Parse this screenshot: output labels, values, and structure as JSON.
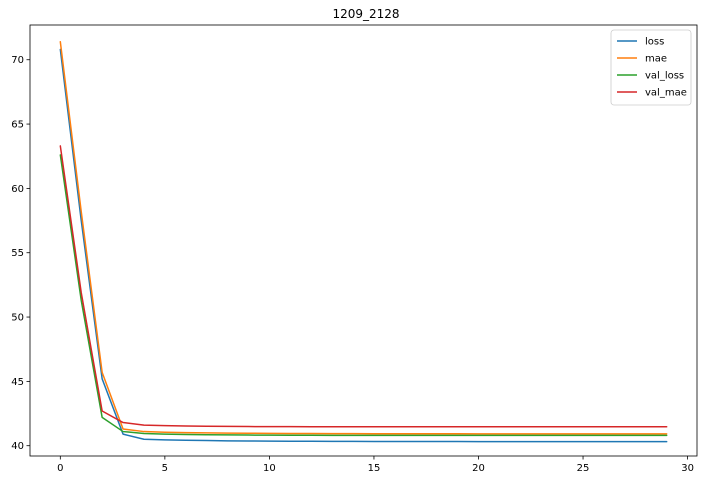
{
  "chart_data": {
    "type": "line",
    "title": "1209_2128",
    "xlabel": "",
    "ylabel": "",
    "xlim": [
      -1.45,
      30.45
    ],
    "ylim": [
      39.2,
      72.7
    ],
    "xticks": [
      0,
      5,
      10,
      15,
      20,
      25,
      30
    ],
    "yticks": [
      40,
      45,
      50,
      55,
      60,
      65,
      70
    ],
    "grid": false,
    "legend_position": "top-right",
    "x": [
      0,
      1,
      2,
      3,
      4,
      5,
      6,
      7,
      8,
      9,
      10,
      11,
      12,
      13,
      14,
      15,
      16,
      17,
      18,
      19,
      20,
      21,
      22,
      23,
      24,
      25,
      26,
      27,
      28,
      29
    ],
    "series": [
      {
        "name": "loss",
        "color": "#1f77b4",
        "values": [
          70.8,
          57.5,
          45.2,
          40.9,
          40.5,
          40.45,
          40.42,
          40.4,
          40.38,
          40.37,
          40.36,
          40.35,
          40.35,
          40.34,
          40.34,
          40.33,
          40.33,
          40.33,
          40.33,
          40.33,
          40.32,
          40.32,
          40.32,
          40.32,
          40.32,
          40.32,
          40.32,
          40.32,
          40.32,
          40.32
        ]
      },
      {
        "name": "mae",
        "color": "#ff7f0e",
        "values": [
          71.4,
          58.2,
          45.7,
          41.3,
          41.1,
          41.05,
          41.02,
          41.0,
          40.98,
          40.97,
          40.96,
          40.95,
          40.95,
          40.94,
          40.94,
          40.93,
          40.93,
          40.93,
          40.93,
          40.93,
          40.92,
          40.92,
          40.92,
          40.92,
          40.92,
          40.92,
          40.92,
          40.92,
          40.92,
          40.92
        ]
      },
      {
        "name": "val_loss",
        "color": "#2ca02c",
        "values": [
          62.6,
          51.3,
          42.2,
          41.1,
          40.95,
          40.9,
          40.87,
          40.85,
          40.84,
          40.83,
          40.82,
          40.81,
          40.81,
          40.8,
          40.8,
          40.8,
          40.8,
          40.8,
          40.8,
          40.8,
          40.8,
          40.8,
          40.8,
          40.8,
          40.8,
          40.8,
          40.8,
          40.8,
          40.8,
          40.8
        ]
      },
      {
        "name": "val_mae",
        "color": "#d62728",
        "values": [
          63.3,
          51.9,
          42.7,
          41.8,
          41.6,
          41.56,
          41.53,
          41.51,
          41.5,
          41.49,
          41.48,
          41.48,
          41.47,
          41.47,
          41.47,
          41.47,
          41.47,
          41.47,
          41.47,
          41.47,
          41.47,
          41.47,
          41.47,
          41.47,
          41.47,
          41.47,
          41.47,
          41.47,
          41.47,
          41.47
        ]
      }
    ]
  }
}
